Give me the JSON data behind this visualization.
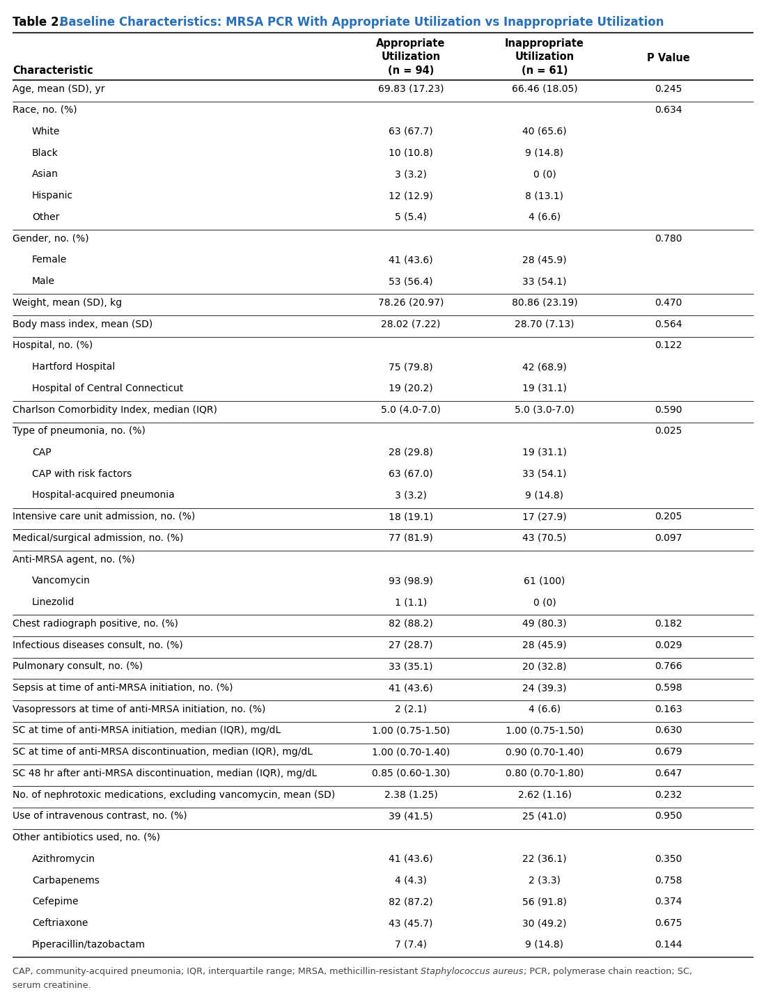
{
  "title_prefix": "Table 2.",
  "title_main": " Baseline Characteristics: MRSA PCR With Appropriate Utilization vs Inappropriate Utilization",
  "col_headers_line1": [
    "",
    "Appropriate",
    "Inappropriate",
    ""
  ],
  "col_headers_line2": [
    "",
    "Utilization",
    "Utilization",
    "P Value"
  ],
  "col_headers_line3": [
    "Characteristic",
    "(n = 94)",
    "(n = 61)",
    ""
  ],
  "footnote_before": "CAP, community-acquired pneumonia; IQR, interquartile range; MRSA, methicillin-resistant ",
  "footnote_italic": "Staphylococcus aureus",
  "footnote_after": "; PCR, polymerase chain reaction; SC,",
  "footnote_line2": "serum creatinine.",
  "rows": [
    {
      "label": "Age, mean (SD), yr",
      "indent": 0,
      "col1": "69.83 (17.23)",
      "col2": "66.46 (18.05)",
      "col3": "0.245",
      "sep": true
    },
    {
      "label": "Race, no. (%)",
      "indent": 0,
      "col1": "",
      "col2": "",
      "col3": "0.634",
      "sep": true
    },
    {
      "label": "White",
      "indent": 1,
      "col1": "63 (67.7)",
      "col2": "40 (65.6)",
      "col3": "",
      "sep": false
    },
    {
      "label": "Black",
      "indent": 1,
      "col1": "10 (10.8)",
      "col2": "9 (14.8)",
      "col3": "",
      "sep": false
    },
    {
      "label": "Asian",
      "indent": 1,
      "col1": "3 (3.2)",
      "col2": "0 (0)",
      "col3": "",
      "sep": false
    },
    {
      "label": "Hispanic",
      "indent": 1,
      "col1": "12 (12.9)",
      "col2": "8 (13.1)",
      "col3": "",
      "sep": false
    },
    {
      "label": "Other",
      "indent": 1,
      "col1": "5 (5.4)",
      "col2": "4 (6.6)",
      "col3": "",
      "sep": false
    },
    {
      "label": "Gender, no. (%)",
      "indent": 0,
      "col1": "",
      "col2": "",
      "col3": "0.780",
      "sep": true
    },
    {
      "label": "Female",
      "indent": 1,
      "col1": "41 (43.6)",
      "col2": "28 (45.9)",
      "col3": "",
      "sep": false
    },
    {
      "label": "Male",
      "indent": 1,
      "col1": "53 (56.4)",
      "col2": "33 (54.1)",
      "col3": "",
      "sep": false
    },
    {
      "label": "Weight, mean (SD), kg",
      "indent": 0,
      "col1": "78.26 (20.97)",
      "col2": "80.86 (23.19)",
      "col3": "0.470",
      "sep": true
    },
    {
      "label": "Body mass index, mean (SD)",
      "indent": 0,
      "col1": "28.02 (7.22)",
      "col2": "28.70 (7.13)",
      "col3": "0.564",
      "sep": true
    },
    {
      "label": "Hospital, no. (%)",
      "indent": 0,
      "col1": "",
      "col2": "",
      "col3": "0.122",
      "sep": true
    },
    {
      "label": "Hartford Hospital",
      "indent": 1,
      "col1": "75 (79.8)",
      "col2": "42 (68.9)",
      "col3": "",
      "sep": false
    },
    {
      "label": "Hospital of Central Connecticut",
      "indent": 1,
      "col1": "19 (20.2)",
      "col2": "19 (31.1)",
      "col3": "",
      "sep": false
    },
    {
      "label": "Charlson Comorbidity Index, median (IQR)",
      "indent": 0,
      "col1": "5.0 (4.0-7.0)",
      "col2": "5.0 (3.0-7.0)",
      "col3": "0.590",
      "sep": true
    },
    {
      "label": "Type of pneumonia, no. (%)",
      "indent": 0,
      "col1": "",
      "col2": "",
      "col3": "0.025",
      "sep": true
    },
    {
      "label": "CAP",
      "indent": 1,
      "col1": "28 (29.8)",
      "col2": "19 (31.1)",
      "col3": "",
      "sep": false
    },
    {
      "label": "CAP with risk factors",
      "indent": 1,
      "col1": "63 (67.0)",
      "col2": "33 (54.1)",
      "col3": "",
      "sep": false
    },
    {
      "label": "Hospital-acquired pneumonia",
      "indent": 1,
      "col1": "3 (3.2)",
      "col2": "9 (14.8)",
      "col3": "",
      "sep": false
    },
    {
      "label": "Intensive care unit admission, no. (%)",
      "indent": 0,
      "col1": "18 (19.1)",
      "col2": "17 (27.9)",
      "col3": "0.205",
      "sep": true
    },
    {
      "label": "Medical/surgical admission, no. (%)",
      "indent": 0,
      "col1": "77 (81.9)",
      "col2": "43 (70.5)",
      "col3": "0.097",
      "sep": true
    },
    {
      "label": "Anti-MRSA agent, no. (%)",
      "indent": 0,
      "col1": "",
      "col2": "",
      "col3": "",
      "sep": true
    },
    {
      "label": "Vancomycin",
      "indent": 1,
      "col1": "93 (98.9)",
      "col2": "61 (100)",
      "col3": "",
      "sep": false
    },
    {
      "label": "Linezolid",
      "indent": 1,
      "col1": "1 (1.1)",
      "col2": "0 (0)",
      "col3": "",
      "sep": false
    },
    {
      "label": "Chest radiograph positive, no. (%)",
      "indent": 0,
      "col1": "82 (88.2)",
      "col2": "49 (80.3)",
      "col3": "0.182",
      "sep": true
    },
    {
      "label": "Infectious diseases consult, no. (%)",
      "indent": 0,
      "col1": "27 (28.7)",
      "col2": "28 (45.9)",
      "col3": "0.029",
      "sep": true
    },
    {
      "label": "Pulmonary consult, no. (%)",
      "indent": 0,
      "col1": "33 (35.1)",
      "col2": "20 (32.8)",
      "col3": "0.766",
      "sep": true
    },
    {
      "label": "Sepsis at time of anti-MRSA initiation, no. (%)",
      "indent": 0,
      "col1": "41 (43.6)",
      "col2": "24 (39.3)",
      "col3": "0.598",
      "sep": true
    },
    {
      "label": "Vasopressors at time of anti-MRSA initiation, no. (%)",
      "indent": 0,
      "col1": "2 (2.1)",
      "col2": "4 (6.6)",
      "col3": "0.163",
      "sep": true
    },
    {
      "label": "SC at time of anti-MRSA initiation, median (IQR), mg/dL",
      "indent": 0,
      "col1": "1.00 (0.75-1.50)",
      "col2": "1.00 (0.75-1.50)",
      "col3": "0.630",
      "sep": true
    },
    {
      "label": "SC at time of anti-MRSA discontinuation, median (IQR), mg/dL",
      "indent": 0,
      "col1": "1.00 (0.70-1.40)",
      "col2": "0.90 (0.70-1.40)",
      "col3": "0.679",
      "sep": true
    },
    {
      "label": "SC 48 hr after anti-MRSA discontinuation, median (IQR), mg/dL",
      "indent": 0,
      "col1": "0.85 (0.60-1.30)",
      "col2": "0.80 (0.70-1.80)",
      "col3": "0.647",
      "sep": true
    },
    {
      "label": "No. of nephrotoxic medications, excluding vancomycin, mean (SD)",
      "indent": 0,
      "col1": "2.38 (1.25)",
      "col2": "2.62 (1.16)",
      "col3": "0.232",
      "sep": true
    },
    {
      "label": "Use of intravenous contrast, no. (%)",
      "indent": 0,
      "col1": "39 (41.5)",
      "col2": "25 (41.0)",
      "col3": "0.950",
      "sep": true
    },
    {
      "label": "Other antibiotics used, no. (%)",
      "indent": 0,
      "col1": "",
      "col2": "",
      "col3": "",
      "sep": true
    },
    {
      "label": "Azithromycin",
      "indent": 1,
      "col1": "41 (43.6)",
      "col2": "22 (36.1)",
      "col3": "0.350",
      "sep": false
    },
    {
      "label": "Carbapenems",
      "indent": 1,
      "col1": "4 (4.3)",
      "col2": "2 (3.3)",
      "col3": "0.758",
      "sep": false
    },
    {
      "label": "Cefepime",
      "indent": 1,
      "col1": "82 (87.2)",
      "col2": "56 (91.8)",
      "col3": "0.374",
      "sep": false
    },
    {
      "label": "Ceftriaxone",
      "indent": 1,
      "col1": "43 (45.7)",
      "col2": "30 (49.2)",
      "col3": "0.675",
      "sep": false
    },
    {
      "label": "Piperacillin/tazobactam",
      "indent": 1,
      "col1": "7 (7.4)",
      "col2": "9 (14.8)",
      "col3": "0.144",
      "sep": false
    }
  ],
  "bg_color": "#ffffff",
  "title_prefix_color": "#000000",
  "title_main_color": "#2970b8",
  "line_color_heavy": "#333333",
  "line_color_light": "#888888",
  "text_color": "#000000",
  "footnote_color": "#444444",
  "title_fontsize": 12,
  "header_fontsize": 10.5,
  "body_fontsize": 10.0,
  "footnote_fontsize": 9.2
}
